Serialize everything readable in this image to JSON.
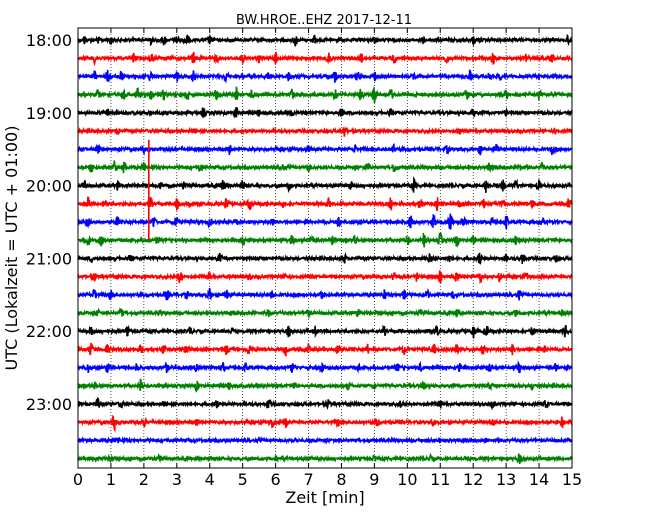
{
  "chart_data": {
    "type": "line",
    "title": "BW.HROE..EHZ 2017-12-11",
    "xlabel": "Zeit  [min]",
    "ylabel": "UTC (Lokalzeit = UTC + 01:00)",
    "xlim": [
      0,
      15
    ],
    "x_ticks": [
      "0",
      "1",
      "2",
      "3",
      "4",
      "5",
      "6",
      "7",
      "8",
      "9",
      "10",
      "11",
      "12",
      "13",
      "14",
      "15"
    ],
    "y_tick_labels": [
      "18:00",
      "19:00",
      "20:00",
      "21:00",
      "22:00",
      "23:00"
    ],
    "grid": "vertical-dotted",
    "row_interval_minutes": 15,
    "start_time": "18:00",
    "trace_colors": [
      "#000000",
      "#ff0000",
      "#0000ff",
      "#008000"
    ],
    "rows": [
      {
        "time": "18:00",
        "color": "#000000",
        "events": [
          [
            0.2,
            0.6
          ],
          [
            0.6,
            0.5
          ],
          [
            1.0,
            0.6
          ],
          [
            2.2,
            0.7
          ],
          [
            2.6,
            0.8
          ],
          [
            3.0,
            0.6
          ],
          [
            3.3,
            0.9
          ],
          [
            4.0,
            0.7
          ],
          [
            6.6,
            1.0
          ],
          [
            7.2,
            0.8
          ],
          [
            9.0,
            0.5
          ],
          [
            10.5,
            0.5
          ],
          [
            12.0,
            0.6
          ],
          [
            14.9,
            0.9
          ]
        ]
      },
      {
        "time": "18:15",
        "color": "#ff0000",
        "events": [
          [
            0.5,
            0.7
          ],
          [
            1.7,
            0.8
          ],
          [
            2.2,
            0.9
          ],
          [
            3.5,
            1.0
          ],
          [
            4.2,
            0.7
          ],
          [
            5.0,
            0.8
          ],
          [
            5.5,
            0.7
          ],
          [
            6.0,
            0.9
          ],
          [
            7.6,
            1.0
          ],
          [
            8.6,
            0.7
          ],
          [
            9.6,
            1.0
          ],
          [
            11.2,
            0.7
          ],
          [
            12.6,
            0.9
          ],
          [
            13.6,
            1.0
          ],
          [
            14.4,
            0.7
          ]
        ]
      },
      {
        "time": "18:30",
        "color": "#0000ff",
        "events": [
          [
            0.5,
            0.8
          ],
          [
            0.9,
            1.2
          ],
          [
            1.3,
            0.9
          ],
          [
            2.2,
            0.7
          ],
          [
            3.0,
            1.0
          ],
          [
            3.5,
            0.9
          ],
          [
            4.5,
            0.9
          ],
          [
            5.8,
            0.7
          ],
          [
            6.4,
            0.8
          ],
          [
            7.8,
            1.0
          ],
          [
            8.5,
            0.7
          ],
          [
            9.0,
            1.0
          ],
          [
            10.2,
            0.7
          ],
          [
            11.9,
            0.9
          ],
          [
            12.5,
            0.8
          ],
          [
            12.8,
            0.7
          ]
        ]
      },
      {
        "time": "18:45",
        "color": "#008000",
        "events": [
          [
            0.6,
            0.8
          ],
          [
            1.4,
            1.3
          ],
          [
            1.8,
            1.0
          ],
          [
            2.2,
            1.1
          ],
          [
            2.6,
            0.9
          ],
          [
            3.3,
            1.0
          ],
          [
            4.2,
            0.9
          ],
          [
            4.8,
            1.1
          ],
          [
            5.3,
            1.0
          ],
          [
            6.5,
            0.9
          ],
          [
            7.8,
            1.0
          ],
          [
            8.6,
            1.4
          ],
          [
            9.0,
            1.3
          ],
          [
            9.5,
            1.0
          ],
          [
            11.8,
            0.9
          ],
          [
            13.0,
            1.0
          ],
          [
            14.0,
            0.9
          ]
        ]
      },
      {
        "time": "19:00",
        "color": "#000000",
        "events": [
          [
            0.9,
            0.6
          ],
          [
            3.8,
            0.8
          ],
          [
            4.8,
            1.0
          ],
          [
            5.5,
            0.6
          ],
          [
            6.5,
            0.5
          ],
          [
            8.0,
            0.7
          ],
          [
            9.5,
            0.6
          ],
          [
            12.0,
            0.5
          ],
          [
            13.0,
            0.6
          ]
        ]
      },
      {
        "time": "19:15",
        "color": "#ff0000",
        "events": [
          [
            1.2,
            0.4
          ],
          [
            3.5,
            0.4
          ],
          [
            8.1,
            1.0
          ],
          [
            11.6,
            0.5
          ],
          [
            14.5,
            0.3
          ]
        ]
      },
      {
        "time": "19:30",
        "color": "#0000ff",
        "events": [
          [
            0.6,
            0.7
          ],
          [
            2.0,
            0.5
          ],
          [
            4.6,
            0.8
          ],
          [
            7.0,
            0.6
          ],
          [
            8.4,
            0.7
          ],
          [
            9.6,
            0.9
          ],
          [
            11.2,
            0.6
          ],
          [
            12.2,
            0.9
          ],
          [
            12.7,
            0.9
          ],
          [
            14.4,
            0.9
          ]
        ]
      },
      {
        "time": "19:45",
        "color": "#008000",
        "events": [
          [
            0.4,
            0.9
          ],
          [
            1.1,
            1.3
          ],
          [
            1.4,
            1.1
          ],
          [
            2.0,
            0.7
          ],
          [
            3.7,
            0.8
          ],
          [
            6.2,
            0.6
          ],
          [
            7.0,
            0.7
          ],
          [
            8.8,
            0.8
          ],
          [
            9.6,
            0.8
          ],
          [
            12.5,
            0.6
          ],
          [
            13.4,
            0.5
          ],
          [
            14.1,
            0.8
          ]
        ]
      },
      {
        "time": "20:00",
        "color": "#000000",
        "events": [
          [
            0.2,
            0.8
          ],
          [
            1.2,
            0.7
          ],
          [
            2.5,
            0.6
          ],
          [
            3.2,
            0.6
          ],
          [
            4.4,
            1.0
          ],
          [
            5.0,
            0.9
          ],
          [
            6.4,
            0.7
          ],
          [
            8.3,
            0.9
          ],
          [
            10.2,
            1.1
          ],
          [
            12.4,
            1.2
          ],
          [
            12.9,
            1.0
          ],
          [
            13.3,
            0.9
          ],
          [
            14.0,
            0.9
          ]
        ]
      },
      {
        "time": "20:15",
        "color": "#ff0000",
        "events": [
          [
            0.3,
            1.0
          ],
          [
            0.8,
            0.8
          ],
          [
            2.2,
            1.1
          ],
          [
            3.0,
            1.0
          ],
          [
            3.4,
            0.9
          ],
          [
            4.5,
            1.0
          ],
          [
            5.2,
            0.9
          ],
          [
            6.2,
            0.8
          ],
          [
            7.6,
            0.8
          ],
          [
            9.5,
            1.0
          ],
          [
            10.4,
            1.2
          ],
          [
            10.9,
            1.1
          ],
          [
            11.6,
            0.8
          ],
          [
            12.3,
            0.9
          ],
          [
            12.9,
            0.8
          ],
          [
            13.8,
            0.7
          ],
          [
            14.9,
            0.9
          ]
        ]
      },
      {
        "time": "20:30",
        "color": "#0000ff",
        "events": [
          [
            0.3,
            0.8
          ],
          [
            1.2,
            0.8
          ],
          [
            2.3,
            1.0
          ],
          [
            3.0,
            0.8
          ],
          [
            4.0,
            0.8
          ],
          [
            4.8,
            0.6
          ],
          [
            5.9,
            0.8
          ],
          [
            7.9,
            0.8
          ],
          [
            10.1,
            1.2
          ],
          [
            10.8,
            1.3
          ],
          [
            11.3,
            1.4
          ],
          [
            11.7,
            1.2
          ],
          [
            12.6,
            1.0
          ],
          [
            13.0,
            1.1
          ],
          [
            14.1,
            0.6
          ]
        ]
      },
      {
        "time": "20:45",
        "color": "#008000",
        "events": [
          [
            0.3,
            1.0
          ],
          [
            0.7,
            0.9
          ],
          [
            2.4,
            0.6
          ],
          [
            5.0,
            0.6
          ],
          [
            6.5,
            0.8
          ],
          [
            7.1,
            0.9
          ],
          [
            7.7,
            0.8
          ],
          [
            8.4,
            0.9
          ],
          [
            10.0,
            1.1
          ],
          [
            10.5,
            1.2
          ],
          [
            11.0,
            1.2
          ],
          [
            11.5,
            1.0
          ],
          [
            12.0,
            0.8
          ],
          [
            13.3,
            0.7
          ]
        ]
      },
      {
        "time": "21:00",
        "color": "#000000",
        "events": [
          [
            0.4,
            0.5
          ],
          [
            1.6,
            0.6
          ],
          [
            4.3,
            0.8
          ],
          [
            8.1,
            0.7
          ],
          [
            10.7,
            1.0
          ],
          [
            11.3,
            0.9
          ],
          [
            12.2,
            0.8
          ],
          [
            13.0,
            0.6
          ],
          [
            13.5,
            1.1
          ],
          [
            14.5,
            0.6
          ]
        ]
      },
      {
        "time": "21:15",
        "color": "#ff0000",
        "events": [
          [
            0.5,
            0.5
          ],
          [
            3.1,
            1.2
          ],
          [
            4.0,
            0.6
          ],
          [
            5.2,
            0.6
          ],
          [
            6.3,
            0.8
          ],
          [
            9.6,
            0.7
          ],
          [
            10.3,
            0.9
          ],
          [
            11.0,
            1.0
          ],
          [
            11.5,
            1.0
          ],
          [
            12.2,
            0.9
          ],
          [
            12.8,
            0.8
          ],
          [
            13.6,
            0.6
          ]
        ]
      },
      {
        "time": "21:30",
        "color": "#0000ff",
        "events": [
          [
            0.5,
            1.0
          ],
          [
            1.0,
            0.7
          ],
          [
            2.7,
            0.8
          ],
          [
            3.3,
            0.6
          ],
          [
            4.0,
            1.1
          ],
          [
            4.5,
            1.0
          ],
          [
            5.9,
            0.8
          ],
          [
            7.4,
            0.6
          ],
          [
            9.3,
            1.0
          ],
          [
            9.9,
            0.9
          ],
          [
            10.6,
            0.8
          ],
          [
            11.4,
            0.7
          ],
          [
            13.4,
            0.8
          ]
        ]
      },
      {
        "time": "21:45",
        "color": "#008000",
        "events": [
          [
            0.6,
            0.5
          ],
          [
            1.3,
            0.8
          ],
          [
            2.5,
            0.4
          ],
          [
            5.8,
            0.5
          ],
          [
            7.0,
            0.5
          ],
          [
            8.5,
            0.6
          ],
          [
            10.4,
            0.5
          ],
          [
            11.5,
            0.6
          ],
          [
            13.3,
            0.5
          ],
          [
            14.7,
            0.6
          ]
        ]
      },
      {
        "time": "22:00",
        "color": "#000000",
        "events": [
          [
            0.4,
            0.9
          ],
          [
            1.5,
            0.7
          ],
          [
            3.4,
            0.7
          ],
          [
            4.7,
            0.6
          ],
          [
            6.4,
            1.0
          ],
          [
            7.2,
            0.8
          ],
          [
            9.3,
            0.7
          ],
          [
            10.9,
            0.8
          ],
          [
            12.0,
            1.1
          ],
          [
            12.4,
            1.0
          ],
          [
            13.8,
            0.8
          ],
          [
            14.8,
            1.1
          ]
        ]
      },
      {
        "time": "22:15",
        "color": "#ff0000",
        "events": [
          [
            0.4,
            1.0
          ],
          [
            0.9,
            0.9
          ],
          [
            1.9,
            0.9
          ],
          [
            2.6,
            0.8
          ],
          [
            3.3,
            0.8
          ],
          [
            4.5,
            0.8
          ],
          [
            5.2,
            0.8
          ],
          [
            6.3,
            0.9
          ],
          [
            7.0,
            0.8
          ],
          [
            7.9,
            0.8
          ],
          [
            8.8,
            0.8
          ],
          [
            9.9,
            0.8
          ],
          [
            10.8,
            0.9
          ],
          [
            11.5,
            0.8
          ],
          [
            12.3,
            0.8
          ],
          [
            13.2,
            0.9
          ],
          [
            14.2,
            0.8
          ]
        ]
      },
      {
        "time": "22:30",
        "color": "#0000ff",
        "events": [
          [
            0.3,
            0.9
          ],
          [
            0.9,
            0.8
          ],
          [
            1.8,
            0.9
          ],
          [
            2.7,
            0.8
          ],
          [
            3.6,
            0.7
          ],
          [
            4.4,
            0.8
          ],
          [
            5.1,
            0.7
          ],
          [
            6.5,
            0.8
          ],
          [
            7.4,
            0.7
          ],
          [
            8.5,
            0.6
          ],
          [
            9.7,
            0.7
          ],
          [
            10.4,
            0.7
          ],
          [
            11.6,
            0.6
          ],
          [
            12.5,
            0.7
          ],
          [
            13.4,
            0.8
          ],
          [
            14.5,
            0.6
          ]
        ]
      },
      {
        "time": "22:45",
        "color": "#008000",
        "events": [
          [
            0.5,
            0.6
          ],
          [
            1.9,
            1.1
          ],
          [
            3.6,
            0.8
          ],
          [
            4.6,
            0.6
          ],
          [
            6.6,
            0.6
          ],
          [
            8.2,
            0.6
          ],
          [
            9.0,
            0.5
          ],
          [
            10.5,
            0.6
          ],
          [
            12.5,
            0.5
          ],
          [
            13.8,
            0.5
          ]
        ]
      },
      {
        "time": "23:00",
        "color": "#000000",
        "events": [
          [
            0.6,
            0.8
          ],
          [
            1.3,
            0.6
          ],
          [
            2.6,
            0.5
          ],
          [
            4.2,
            0.6
          ],
          [
            5.8,
            0.7
          ],
          [
            7.6,
            0.6
          ],
          [
            9.8,
            0.7
          ],
          [
            11.0,
            0.6
          ],
          [
            12.6,
            0.6
          ],
          [
            14.2,
            0.6
          ]
        ]
      },
      {
        "time": "23:15",
        "color": "#ff0000",
        "events": [
          [
            1.1,
            1.3
          ],
          [
            2.0,
            0.7
          ],
          [
            3.6,
            0.6
          ],
          [
            5.9,
            1.0
          ],
          [
            6.3,
            0.9
          ],
          [
            7.9,
            0.6
          ],
          [
            9.1,
            0.9
          ],
          [
            10.8,
            0.6
          ],
          [
            12.6,
            0.6
          ],
          [
            14.7,
            0.9
          ]
        ]
      },
      {
        "time": "23:30",
        "color": "#0000ff",
        "events": [
          [
            1.2,
            0.6
          ],
          [
            6.6,
            0.3
          ],
          [
            12.4,
            0.3
          ]
        ]
      },
      {
        "time": "23:45",
        "color": "#008000",
        "events": [
          [
            1.0,
            0.5
          ],
          [
            2.5,
            0.7
          ],
          [
            4.0,
            0.4
          ],
          [
            6.0,
            0.4
          ],
          [
            9.0,
            0.4
          ],
          [
            10.7,
            0.4
          ],
          [
            13.4,
            0.8
          ]
        ]
      }
    ],
    "spikes": [
      {
        "row_time": "20:15",
        "x": 2.15,
        "color": "#ff0000"
      }
    ]
  }
}
